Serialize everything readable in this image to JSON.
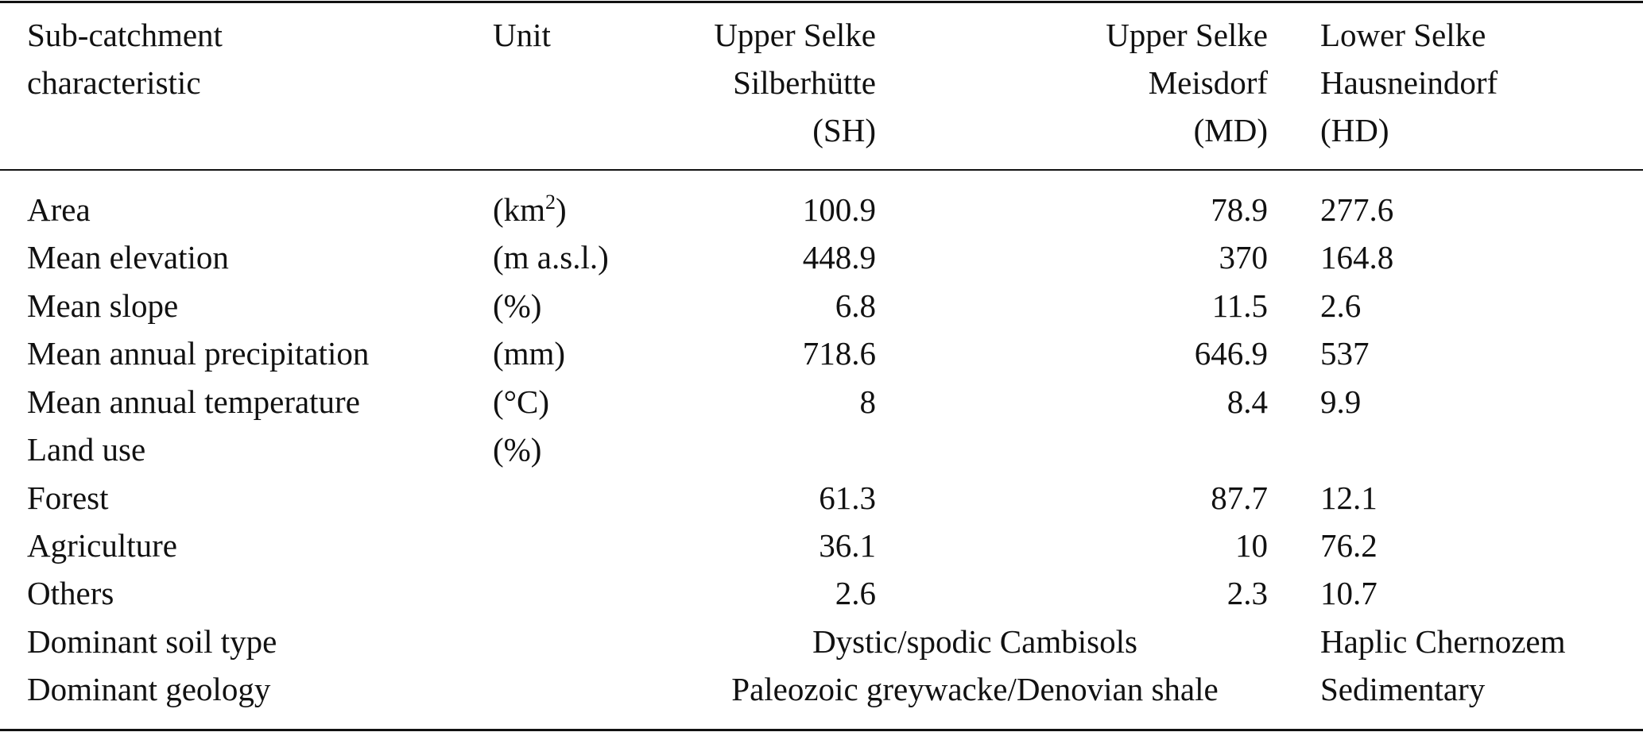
{
  "header": {
    "characteristic": [
      "Sub-catchment",
      "characteristic"
    ],
    "unit": "Unit",
    "sh": [
      "Upper Selke",
      "Silberhütte",
      "(SH)"
    ],
    "md": [
      "Upper Selke",
      "Meisdorf",
      "(MD)"
    ],
    "hd": [
      "Lower Selke",
      "Hausneindorf",
      "(HD)"
    ]
  },
  "rows": [
    {
      "name": "Area",
      "unit_base": "(km",
      "unit_sup": "2",
      "unit_end": ")",
      "sh": "100.9",
      "md": "78.9",
      "hd": "277.6"
    },
    {
      "name": "Mean elevation",
      "unit": "(m a.s.l.)",
      "sh": "448.9",
      "md": "370",
      "hd": "164.8"
    },
    {
      "name": "Mean slope",
      "unit": "(%)",
      "sh": "6.8",
      "md": "11.5",
      "hd": "2.6"
    },
    {
      "name": "Mean annual precipitation",
      "unit": "(mm)",
      "sh": "718.6",
      "md": "646.9",
      "hd": "537"
    },
    {
      "name": "Mean annual temperature",
      "unit": "(°C)",
      "sh": "8",
      "md": "8.4",
      "hd": "9.9"
    },
    {
      "name": "Land use",
      "unit": "(%)"
    },
    {
      "name": "Forest",
      "sh": "61.3",
      "md": "87.7",
      "hd": "12.1"
    },
    {
      "name": "Agriculture",
      "sh": "36.1",
      "md": "10",
      "hd": "76.2"
    },
    {
      "name": "Others",
      "sh": "2.6",
      "md": "2.3",
      "hd": "10.7"
    },
    {
      "name": "Dominant soil type",
      "shmd": "Dystic/spodic Cambisols",
      "hd": "Haplic Chernozem"
    },
    {
      "name": "Dominant geology",
      "shmd": "Paleozoic greywacke/Denovian shale",
      "hd": "Sedimentary"
    }
  ]
}
